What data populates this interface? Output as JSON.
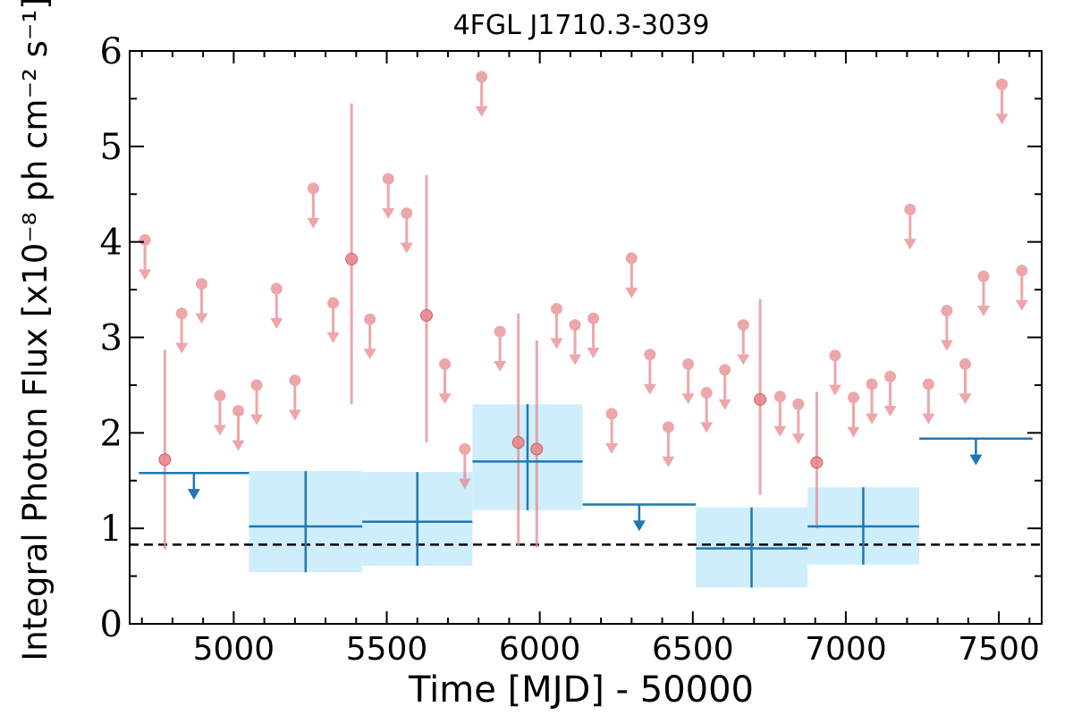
{
  "chart_data": {
    "type": "scatter",
    "title": "4FGL J1710.3-3039",
    "xlabel": "Time [MJD] - 50000",
    "ylabel": "Integral Photon Flux [x10⁻⁸ ph cm⁻² s⁻¹]",
    "xlim": [
      4660,
      7640
    ],
    "ylim": [
      0,
      6
    ],
    "xticks": [
      5000,
      5500,
      6000,
      6500,
      7000,
      7500
    ],
    "yticks": [
      0,
      1,
      2,
      3,
      4,
      5,
      6
    ],
    "grid": false,
    "colors": {
      "short_bins": "#e8898d",
      "long_bins": "#1f77b4",
      "long_bins_band": "#cfeefc",
      "reference_line": "#000000"
    },
    "reference_line": {
      "y": 0.83,
      "style": "dashed"
    },
    "series": [
      {
        "description_key": "short_bins",
        "upper_limits": [
          {
            "x": 4710,
            "y": 4.02
          },
          {
            "x": 4830,
            "y": 3.25
          },
          {
            "x": 4895,
            "y": 3.56
          },
          {
            "x": 4955,
            "y": 2.39
          },
          {
            "x": 5015,
            "y": 2.23
          },
          {
            "x": 5075,
            "y": 2.5
          },
          {
            "x": 5140,
            "y": 3.51
          },
          {
            "x": 5200,
            "y": 2.55
          },
          {
            "x": 5260,
            "y": 4.56
          },
          {
            "x": 5325,
            "y": 3.36
          },
          {
            "x": 5445,
            "y": 3.19
          },
          {
            "x": 5505,
            "y": 4.66
          },
          {
            "x": 5565,
            "y": 4.3
          },
          {
            "x": 5690,
            "y": 2.72
          },
          {
            "x": 5755,
            "y": 1.83
          },
          {
            "x": 5810,
            "y": 5.73
          },
          {
            "x": 5870,
            "y": 3.06
          },
          {
            "x": 6055,
            "y": 3.3
          },
          {
            "x": 6115,
            "y": 3.13
          },
          {
            "x": 6175,
            "y": 3.2
          },
          {
            "x": 6235,
            "y": 2.2
          },
          {
            "x": 6300,
            "y": 3.83
          },
          {
            "x": 6360,
            "y": 2.82
          },
          {
            "x": 6420,
            "y": 2.06
          },
          {
            "x": 6485,
            "y": 2.72
          },
          {
            "x": 6545,
            "y": 2.42
          },
          {
            "x": 6605,
            "y": 2.66
          },
          {
            "x": 6665,
            "y": 3.13
          },
          {
            "x": 6785,
            "y": 2.38
          },
          {
            "x": 6845,
            "y": 2.3
          },
          {
            "x": 6965,
            "y": 2.81
          },
          {
            "x": 7025,
            "y": 2.37
          },
          {
            "x": 7085,
            "y": 2.51
          },
          {
            "x": 7145,
            "y": 2.59
          },
          {
            "x": 7210,
            "y": 4.34
          },
          {
            "x": 7270,
            "y": 2.51
          },
          {
            "x": 7330,
            "y": 3.28
          },
          {
            "x": 7390,
            "y": 2.72
          },
          {
            "x": 7450,
            "y": 3.64
          },
          {
            "x": 7510,
            "y": 5.65
          },
          {
            "x": 7575,
            "y": 3.7
          }
        ],
        "detections": [
          {
            "x": 4775,
            "y": 1.72,
            "y_low": 0.78,
            "y_high": 2.87
          },
          {
            "x": 5385,
            "y": 3.82,
            "y_low": 2.3,
            "y_high": 5.45
          },
          {
            "x": 5630,
            "y": 3.23,
            "y_low": 1.9,
            "y_high": 4.7
          },
          {
            "x": 5930,
            "y": 1.9,
            "y_low": 0.82,
            "y_high": 3.25
          },
          {
            "x": 5990,
            "y": 1.83,
            "y_low": 0.8,
            "y_high": 2.97
          },
          {
            "x": 6720,
            "y": 2.35,
            "y_low": 1.35,
            "y_high": 3.4
          },
          {
            "x": 6905,
            "y": 1.69,
            "y_low": 1.0,
            "y_high": 2.43
          }
        ]
      },
      {
        "description_key": "long_bins",
        "upper_limits": [
          {
            "x_low": 4690,
            "x_high": 5050,
            "y": 1.58
          },
          {
            "x_low": 6140,
            "x_high": 6510,
            "y": 1.25
          },
          {
            "x_low": 7240,
            "x_high": 7610,
            "y": 1.94
          }
        ],
        "detections": [
          {
            "x_low": 5050,
            "x_high": 5420,
            "x": 5235,
            "y": 1.02,
            "y_low": 0.54,
            "y_high": 1.6
          },
          {
            "x_low": 5420,
            "x_high": 5780,
            "x": 5600,
            "y": 1.07,
            "y_low": 0.61,
            "y_high": 1.59
          },
          {
            "x_low": 5780,
            "x_high": 6140,
            "x": 5960,
            "y": 1.7,
            "y_low": 1.19,
            "y_high": 2.3
          },
          {
            "x_low": 6510,
            "x_high": 6875,
            "x": 6692,
            "y": 0.79,
            "y_low": 0.38,
            "y_high": 1.22
          },
          {
            "x_low": 6875,
            "x_high": 7240,
            "x": 7057,
            "y": 1.02,
            "y_low": 0.62,
            "y_high": 1.43
          }
        ]
      }
    ]
  }
}
